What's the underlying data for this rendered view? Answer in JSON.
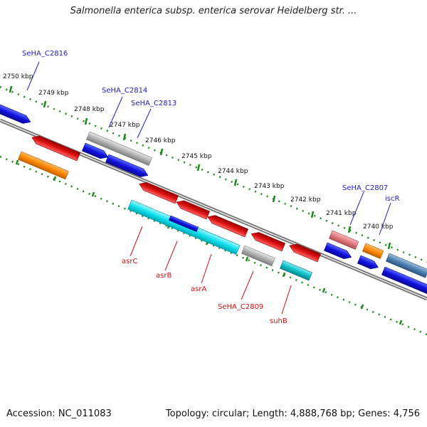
{
  "title": "Salmonella enterica subsp. enterica serovar Heidelberg str. ...",
  "accession_label": "Accession: NC_011083",
  "summary_label": "Topology: circular; Length: 4,888,768 bp; Genes: 4,756",
  "colors": {
    "backbone": "#777777",
    "tick": "#1a8a1a",
    "label_top": "#2222bb",
    "label_bottom": "#cc1111",
    "blue": "#1111dd",
    "red": "#dd1111",
    "orange": "#ff8800",
    "grey": "#b0b0b0",
    "cyan": "#11e0ee",
    "teal": "#10c0c8",
    "pink": "#e07a80",
    "steel": "#4f7fb0"
  },
  "scale": {
    "unit": "kbp",
    "ticks": [
      {
        "kbp": 2750,
        "label": "2750 kbp"
      },
      {
        "kbp": 2749,
        "label": "2749 kbp"
      },
      {
        "kbp": 2748,
        "label": "2748 kbp"
      },
      {
        "kbp": 2747,
        "label": "2747 kbp"
      },
      {
        "kbp": 2746,
        "label": "2746 kbp"
      },
      {
        "kbp": 2745,
        "label": "2745 kbp"
      },
      {
        "kbp": 2744,
        "label": "2744 kbp"
      },
      {
        "kbp": 2743,
        "label": "2743 kbp"
      },
      {
        "kbp": 2742,
        "label": "2742 kbp"
      },
      {
        "kbp": 2741,
        "label": "2741 kbp"
      },
      {
        "kbp": 2740,
        "label": "2740 kbp"
      }
    ]
  },
  "top_labels": [
    "SeHA_C2816",
    "SeHA_C2814",
    "SeHA_C2813",
    "SeHA_C2807",
    "iscR"
  ],
  "bottom_labels": [
    "asrC",
    "asrB",
    "asrA",
    "SeHA_C2809",
    "suhB"
  ]
}
